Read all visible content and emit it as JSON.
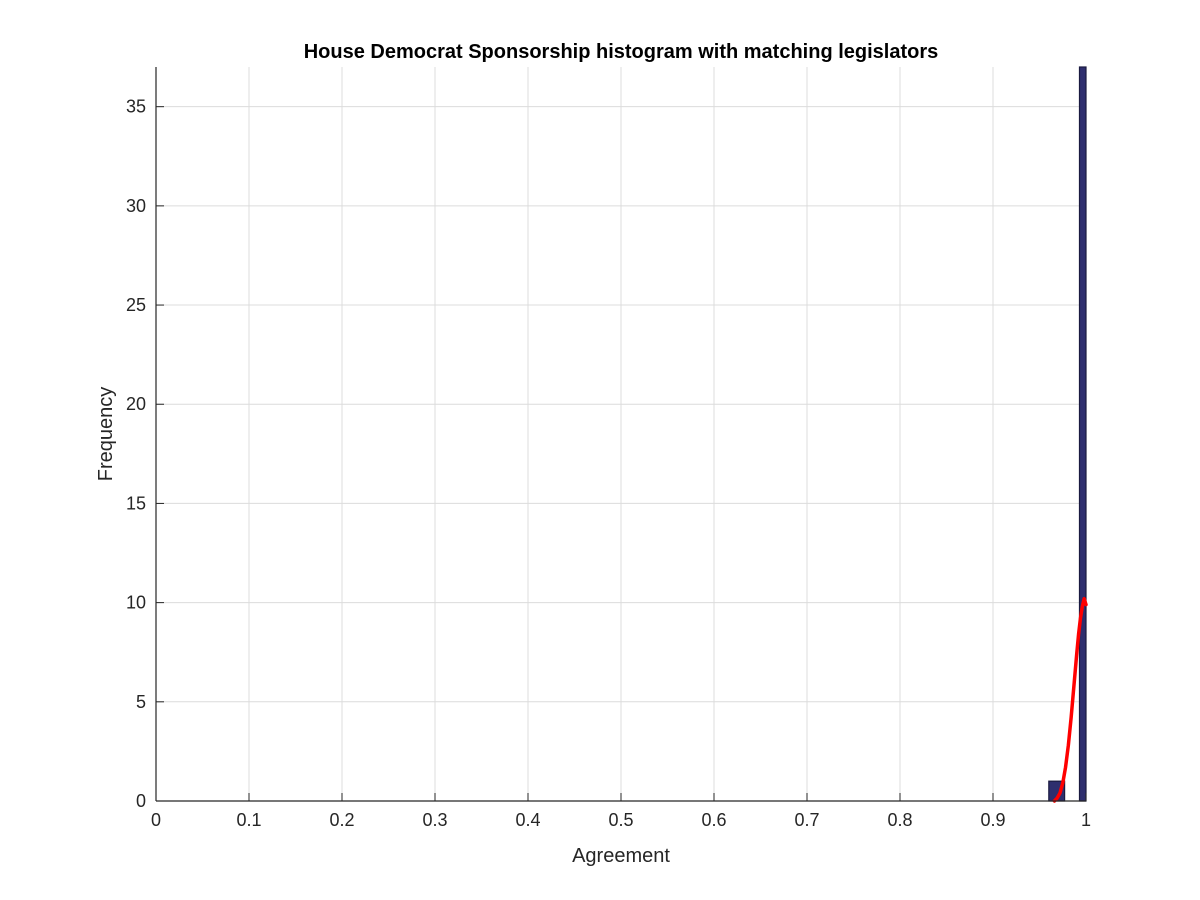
{
  "chart_data": {
    "type": "bar",
    "title": "House Democrat Sponsorship histogram with matching legislators",
    "xlabel": "Agreement",
    "ylabel": "Frequency",
    "xlim": [
      0,
      1
    ],
    "ylim": [
      0,
      37
    ],
    "grid": true,
    "x_ticks": [
      0,
      0.1,
      0.2,
      0.3,
      0.4,
      0.5,
      0.6,
      0.7,
      0.8,
      0.9,
      1
    ],
    "x_tick_labels": [
      "0",
      "0.1",
      "0.2",
      "0.3",
      "0.4",
      "0.5",
      "0.6",
      "0.7",
      "0.8",
      "0.9",
      "1"
    ],
    "y_ticks": [
      0,
      5,
      10,
      15,
      20,
      25,
      30,
      35
    ],
    "y_tick_labels": [
      "0",
      "5",
      "10",
      "15",
      "20",
      "25",
      "30",
      "35"
    ],
    "bins": [
      {
        "x_start": 0.96,
        "x_end": 0.977,
        "count": 1
      },
      {
        "x_start": 0.993,
        "x_end": 1.0,
        "count": 37
      }
    ],
    "fit_curve": {
      "x": [
        0.966,
        0.969,
        0.972,
        0.975,
        0.978,
        0.981,
        0.984,
        0.987,
        0.99,
        0.992,
        0.994,
        0.996,
        0.998,
        1.0
      ],
      "y": [
        0.0,
        0.15,
        0.4,
        0.9,
        1.7,
        2.8,
        4.2,
        5.8,
        7.4,
        8.4,
        9.2,
        9.8,
        10.2,
        9.9
      ]
    },
    "colors": {
      "bar_fill": "#2e2e6e",
      "bar_edge": "#1a1a40",
      "fit_line": "#ff0000",
      "grid": "#dcdcdc",
      "axis": "#262626"
    }
  }
}
